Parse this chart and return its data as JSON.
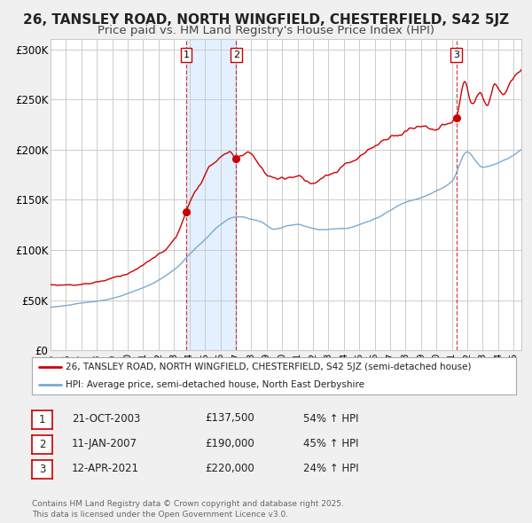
{
  "title": "26, TANSLEY ROAD, NORTH WINGFIELD, CHESTERFIELD, S42 5JZ",
  "subtitle": "Price paid vs. HM Land Registry's House Price Index (HPI)",
  "red_label": "26, TANSLEY ROAD, NORTH WINGFIELD, CHESTERFIELD, S42 5JZ (semi-detached house)",
  "blue_label": "HPI: Average price, semi-detached house, North East Derbyshire",
  "footer": "Contains HM Land Registry data © Crown copyright and database right 2025.\nThis data is licensed under the Open Government Licence v3.0.",
  "transactions": [
    {
      "num": 1,
      "date": "21-OCT-2003",
      "price": "£137,500",
      "change": "54% ↑ HPI",
      "year": 2003.8
    },
    {
      "num": 2,
      "date": "11-JAN-2007",
      "price": "£190,000",
      "change": "45% ↑ HPI",
      "year": 2007.03
    },
    {
      "num": 3,
      "date": "12-APR-2021",
      "price": "£220,000",
      "change": "24% ↑ HPI",
      "year": 2021.28
    }
  ],
  "red_color": "#cc0000",
  "blue_color": "#7aaad0",
  "bg_color": "#f0f0f0",
  "plot_bg": "#ffffff",
  "grid_color": "#cccccc",
  "shaded_color": "#ddeeff",
  "ylim": [
    0,
    310000
  ],
  "yticks": [
    0,
    50000,
    100000,
    150000,
    200000,
    250000,
    300000
  ],
  "ytick_labels": [
    "£0",
    "£50K",
    "£100K",
    "£150K",
    "£200K",
    "£250K",
    "£300K"
  ],
  "xmin": 1995.0,
  "xmax": 2025.5,
  "title_fontsize": 11,
  "subtitle_fontsize": 9.5
}
